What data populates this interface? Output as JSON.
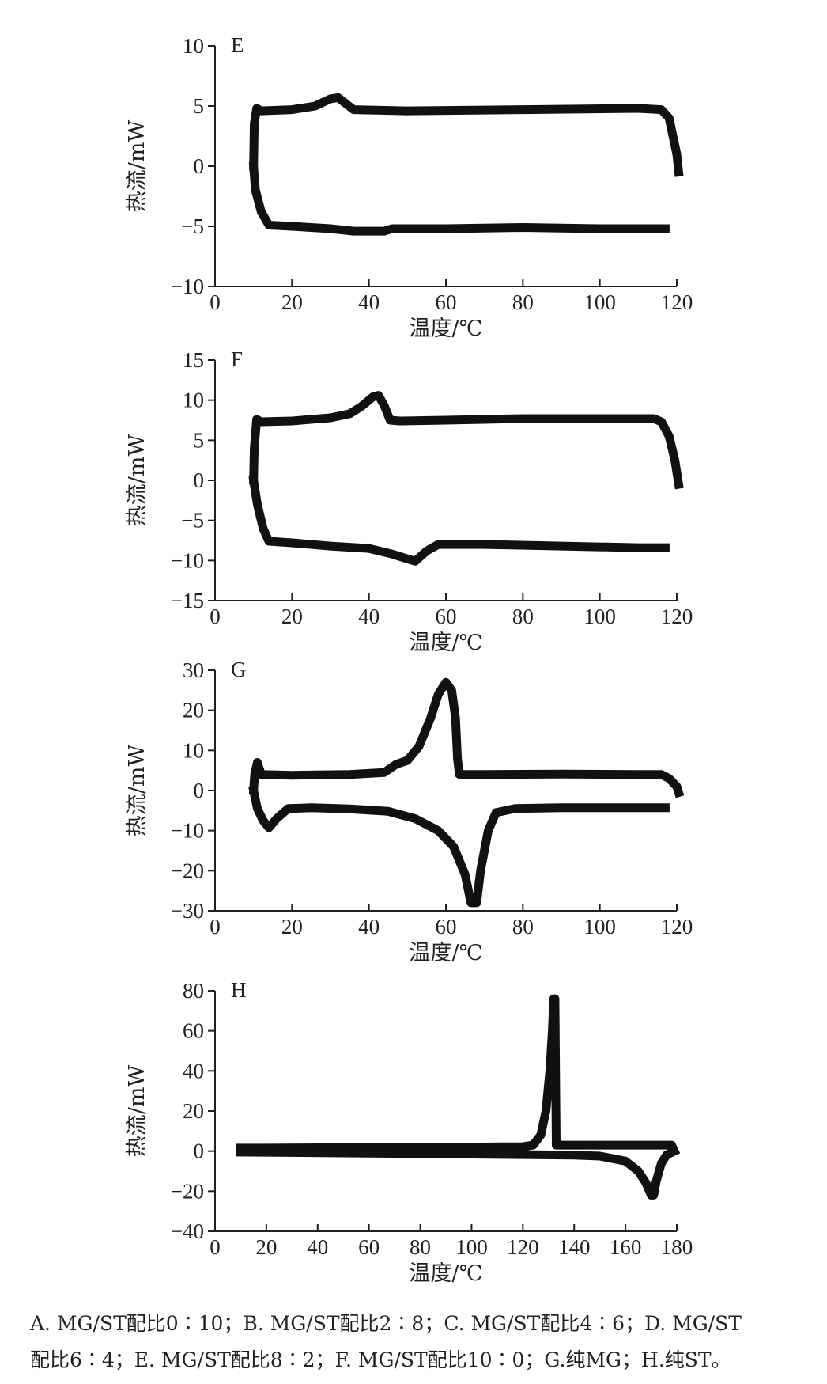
{
  "chart_data": [
    {
      "type": "line",
      "panel": "E",
      "xlabel": "温度/℃",
      "ylabel": "热流/mW",
      "xlim": [
        0,
        120
      ],
      "ylim": [
        -10,
        10
      ],
      "xticks": [
        0,
        20,
        40,
        60,
        80,
        100,
        120
      ],
      "yticks": [
        -10,
        -5,
        0,
        5,
        10
      ],
      "series": [
        {
          "values": [
            [
              10,
              0
            ],
            [
              10.2,
              3.5
            ],
            [
              10.8,
              4.8
            ],
            [
              12,
              4.6
            ],
            [
              20,
              4.7
            ],
            [
              26,
              5
            ],
            [
              30,
              5.6
            ],
            [
              32,
              5.7
            ],
            [
              34,
              5.2
            ],
            [
              36,
              4.7
            ],
            [
              50,
              4.6
            ],
            [
              80,
              4.7
            ],
            [
              110,
              4.8
            ],
            [
              116,
              4.7
            ],
            [
              118,
              4
            ],
            [
              119,
              2.5
            ],
            [
              120,
              1
            ],
            [
              120.5,
              -0.5
            ]
          ]
        },
        {
          "values": [
            [
              10,
              0
            ],
            [
              10.5,
              -2
            ],
            [
              12,
              -3.8
            ],
            [
              14,
              -4.9
            ],
            [
              20,
              -5
            ],
            [
              30,
              -5.2
            ],
            [
              36,
              -5.4
            ],
            [
              44,
              -5.4
            ],
            [
              46,
              -5.2
            ],
            [
              60,
              -5.2
            ],
            [
              80,
              -5.1
            ],
            [
              100,
              -5.2
            ],
            [
              117,
              -5.2
            ]
          ]
        }
      ]
    },
    {
      "type": "line",
      "panel": "F",
      "xlabel": "温度/℃",
      "ylabel": "热流/mW",
      "xlim": [
        0,
        120
      ],
      "ylim": [
        -15,
        15
      ],
      "xticks": [
        0,
        20,
        40,
        60,
        80,
        100,
        120
      ],
      "yticks": [
        -15,
        -10,
        -5,
        0,
        5,
        10,
        15
      ],
      "series": [
        {
          "values": [
            [
              10,
              0
            ],
            [
              10.2,
              4
            ],
            [
              10.8,
              7.6
            ],
            [
              12,
              7.3
            ],
            [
              20,
              7.4
            ],
            [
              30,
              7.8
            ],
            [
              35,
              8.3
            ],
            [
              38,
              9.2
            ],
            [
              41,
              10.4
            ],
            [
              42.5,
              10.6
            ],
            [
              44,
              9.3
            ],
            [
              45.5,
              7.5
            ],
            [
              48,
              7.4
            ],
            [
              60,
              7.5
            ],
            [
              80,
              7.7
            ],
            [
              100,
              7.7
            ],
            [
              114,
              7.7
            ],
            [
              116,
              7.3
            ],
            [
              118,
              5.5
            ],
            [
              119.5,
              2.5
            ],
            [
              120.5,
              -0.5
            ]
          ]
        },
        {
          "values": [
            [
              10,
              0
            ],
            [
              11,
              -3
            ],
            [
              12.5,
              -6
            ],
            [
              14,
              -7.6
            ],
            [
              20,
              -7.8
            ],
            [
              30,
              -8.2
            ],
            [
              40,
              -8.5
            ],
            [
              46,
              -9.2
            ],
            [
              50,
              -9.8
            ],
            [
              52,
              -10.1
            ],
            [
              55,
              -8.8
            ],
            [
              58,
              -8
            ],
            [
              70,
              -8
            ],
            [
              90,
              -8.2
            ],
            [
              110,
              -8.4
            ],
            [
              117,
              -8.4
            ]
          ]
        }
      ]
    },
    {
      "type": "line",
      "panel": "G",
      "xlabel": "温度/℃",
      "ylabel": "热流/mW",
      "xlim": [
        0,
        120
      ],
      "ylim": [
        -30,
        30
      ],
      "xticks": [
        0,
        20,
        40,
        60,
        80,
        100,
        120
      ],
      "yticks": [
        -30,
        -20,
        -10,
        0,
        10,
        20,
        30
      ],
      "series": [
        {
          "values": [
            [
              10,
              0
            ],
            [
              10.3,
              4
            ],
            [
              11,
              7
            ],
            [
              12,
              4
            ],
            [
              20,
              3.8
            ],
            [
              35,
              4
            ],
            [
              44,
              4.5
            ],
            [
              47,
              6.5
            ],
            [
              50,
              7.5
            ],
            [
              53,
              11
            ],
            [
              56,
              18
            ],
            [
              58,
              24
            ],
            [
              60,
              27
            ],
            [
              61.5,
              25
            ],
            [
              62.5,
              18
            ],
            [
              63,
              8
            ],
            [
              63.5,
              4
            ],
            [
              70,
              4
            ],
            [
              90,
              4.1
            ],
            [
              110,
              4
            ],
            [
              116,
              4
            ],
            [
              118,
              3
            ],
            [
              120,
              1
            ],
            [
              120.5,
              -0.5
            ]
          ]
        },
        {
          "values": [
            [
              10,
              0
            ],
            [
              11,
              -4.5
            ],
            [
              12.5,
              -7.5
            ],
            [
              14,
              -9.3
            ],
            [
              16,
              -7
            ],
            [
              19,
              -4.5
            ],
            [
              25,
              -4.3
            ],
            [
              35,
              -4.6
            ],
            [
              45,
              -5.2
            ],
            [
              52,
              -7
            ],
            [
              58,
              -10
            ],
            [
              62,
              -14
            ],
            [
              65,
              -21
            ],
            [
              66.5,
              -28
            ],
            [
              68,
              -28
            ],
            [
              69,
              -20
            ],
            [
              71,
              -10
            ],
            [
              73,
              -5.5
            ],
            [
              78,
              -4.5
            ],
            [
              90,
              -4.3
            ],
            [
              117,
              -4.3
            ]
          ]
        }
      ]
    },
    {
      "type": "line",
      "panel": "H",
      "xlabel": "温度/℃",
      "ylabel": "热流/mW",
      "xlim": [
        0,
        180
      ],
      "ylim": [
        -40,
        80
      ],
      "xticks": [
        0,
        20,
        40,
        60,
        80,
        100,
        120,
        140,
        160,
        180
      ],
      "yticks": [
        -40,
        -20,
        0,
        20,
        40,
        60,
        80
      ],
      "series": [
        {
          "values": [
            [
              10,
              1.5
            ],
            [
              20,
              1.5
            ],
            [
              60,
              1.8
            ],
            [
              100,
              2
            ],
            [
              120,
              2.2
            ],
            [
              124,
              3
            ],
            [
              127,
              8
            ],
            [
              129,
              20
            ],
            [
              130.5,
              40
            ],
            [
              131.5,
              60
            ],
            [
              132,
              76
            ],
            [
              132.5,
              76
            ],
            [
              133,
              3
            ],
            [
              140,
              3
            ],
            [
              170,
              3
            ],
            [
              178,
              3
            ],
            [
              179,
              0
            ]
          ]
        },
        {
          "values": [
            [
              10,
              -0.5
            ],
            [
              60,
              -1
            ],
            [
              100,
              -1.5
            ],
            [
              140,
              -2
            ],
            [
              150,
              -2.5
            ],
            [
              160,
              -5
            ],
            [
              165,
              -10
            ],
            [
              168,
              -16
            ],
            [
              170,
              -22
            ],
            [
              171,
              -22
            ],
            [
              172,
              -15
            ],
            [
              174,
              -6
            ],
            [
              176,
              -2
            ],
            [
              179,
              0
            ]
          ]
        }
      ]
    }
  ],
  "caption": {
    "line1": "A. MG/ST配比0∶10；B. MG/ST配比2∶8；C. MG/ST配比4∶6；D. MG/ST",
    "line2": "配比6∶4；E. MG/ST配比8∶2；F. MG/ST配比10∶0；G.纯MG；H.纯ST。"
  }
}
